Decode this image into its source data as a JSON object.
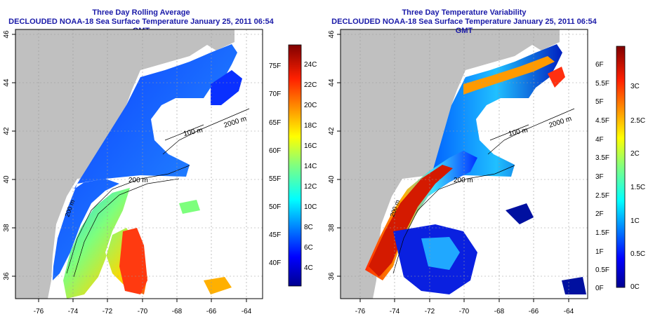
{
  "panels": [
    {
      "title": "Three Day Rolling Average",
      "subtitle": "DECLOUDED NOAA-18 Sea Surface Temperature January 25, 2011 06:54 GMT",
      "x_ticks": [
        "-76",
        "-74",
        "-72",
        "-70",
        "-68",
        "-66",
        "-64"
      ],
      "y_ticks": [
        "36",
        "38",
        "40",
        "42",
        "44",
        "46"
      ],
      "colorbar_c": [
        "24C",
        "22C",
        "20C",
        "18C",
        "16C",
        "14C",
        "12C",
        "10C",
        "8C",
        "6C",
        "4C"
      ],
      "colorbar_f": [
        "75F",
        "70F",
        "65F",
        "60F",
        "55F",
        "50F",
        "45F",
        "40F"
      ],
      "contours": [
        "2000 m",
        "100 m",
        "200 m",
        "200 m"
      ]
    },
    {
      "title": "Three Day Temperature Variability",
      "subtitle": "DECLOUDED NOAA-18 Sea Surface Temperature January 25, 2011 06:54 GMT",
      "x_ticks": [
        "-76",
        "-74",
        "-72",
        "-70",
        "-68",
        "-66",
        "-64"
      ],
      "y_ticks": [
        "36",
        "38",
        "40",
        "42",
        "44",
        "46"
      ],
      "colorbar_c": [
        "3C",
        "2.5C",
        "2C",
        "1.5C",
        "1C",
        "0.5C",
        "0C"
      ],
      "colorbar_f": [
        "6F",
        "5.5F",
        "5F",
        "4.5F",
        "4F",
        "3.5F",
        "3F",
        "2.5F",
        "2F",
        "1.5F",
        "1F",
        "0.5F",
        "0F"
      ],
      "contours": [
        "2000 m",
        "100 m",
        "200 m",
        "200 m"
      ]
    }
  ],
  "colors": {
    "land": "#c0c0c0",
    "title": "#1a1aa8",
    "colormap": [
      "#00008f",
      "#0000ff",
      "#0080ff",
      "#00ffff",
      "#80ff80",
      "#ffff00",
      "#ff8000",
      "#ff0000",
      "#800000"
    ]
  }
}
